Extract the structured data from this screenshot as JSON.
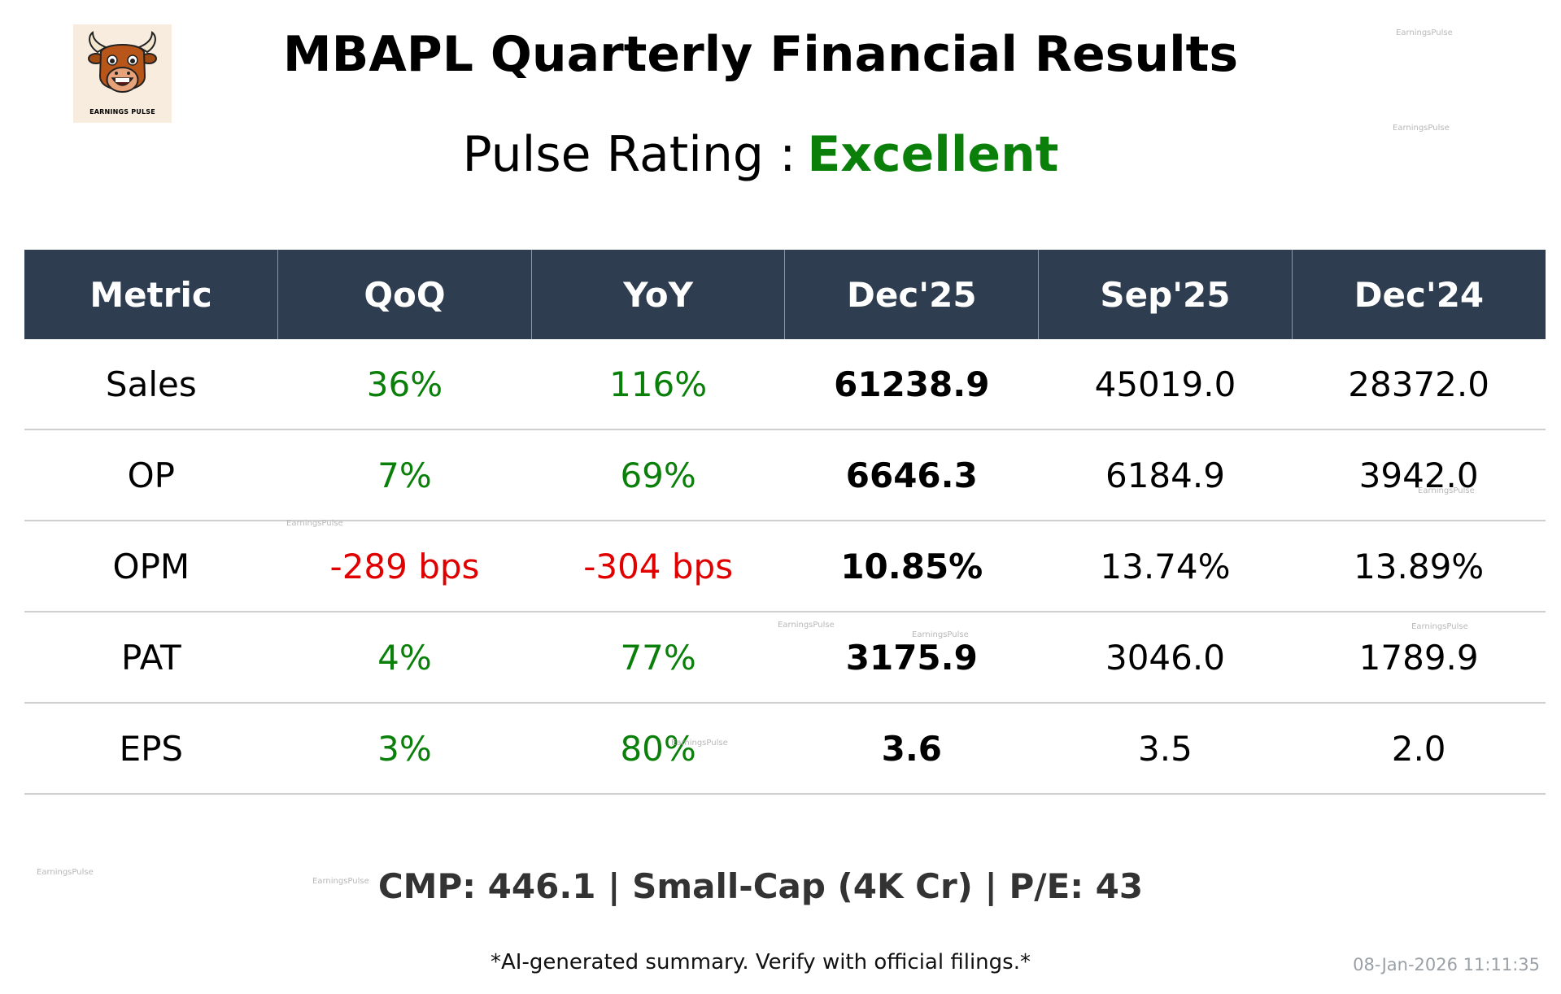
{
  "logo": {
    "text": "EARNINGS PULSE"
  },
  "header": {
    "title": "MBAPL Quarterly Financial Results",
    "rating_label": "Pulse Rating :",
    "rating_value": "Excellent",
    "rating_color": "#0a7f0a"
  },
  "table": {
    "headers": [
      "Metric",
      "QoQ",
      "YoY",
      "Dec'25",
      "Sep'25",
      "Dec'24"
    ],
    "header_bg": "#2e3d50",
    "rows": [
      {
        "metric": "Sales",
        "qoq": "36%",
        "yoy": "116%",
        "cur": "61238.9",
        "prev_q": "45019.0",
        "prev_y": "28372.0"
      },
      {
        "metric": "OP",
        "qoq": "7%",
        "yoy": "69%",
        "cur": "6646.3",
        "prev_q": "6184.9",
        "prev_y": "3942.0"
      },
      {
        "metric": "OPM",
        "qoq": "-289 bps",
        "yoy": "-304 bps",
        "cur": "10.85%",
        "prev_q": "13.74%",
        "prev_y": "13.89%"
      },
      {
        "metric": "PAT",
        "qoq": "4%",
        "yoy": "77%",
        "cur": "3175.9",
        "prev_q": "3046.0",
        "prev_y": "1789.9"
      },
      {
        "metric": "EPS",
        "qoq": "3%",
        "yoy": "80%",
        "cur": "3.6",
        "prev_q": "3.5",
        "prev_y": "2.0"
      }
    ],
    "positive_color": "#0a7f0a",
    "negative_color": "#e00000"
  },
  "footer": {
    "summary": "CMP: 446.1 | Small-Cap (4K Cr) | P/E: 43",
    "disclaimer": "*AI-generated summary. Verify with official filings.*",
    "timestamp": "08-Jan-2026 11:11:35"
  },
  "watermark": "EarningsPulse"
}
